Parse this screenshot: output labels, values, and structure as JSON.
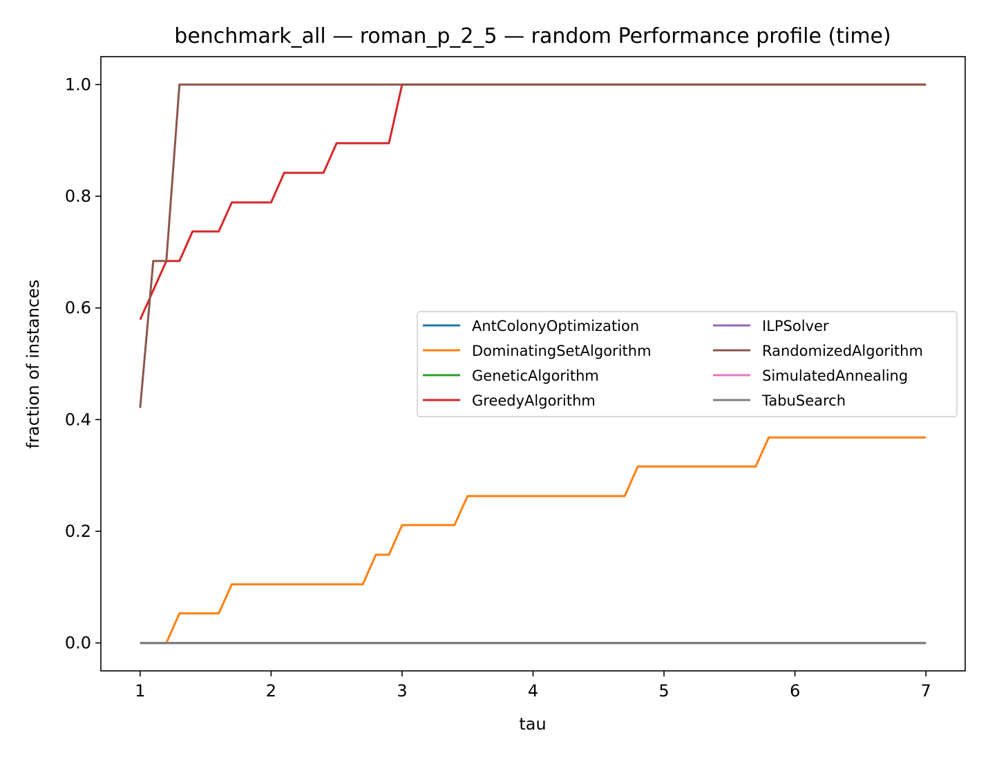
{
  "chart_data": {
    "type": "line",
    "title": "benchmark_all — roman_p_2_5 — random Performance profile (time)",
    "xlabel": "tau",
    "ylabel": "fraction of instances",
    "xlim": [
      0.7,
      7.3
    ],
    "ylim": [
      -0.05,
      1.05
    ],
    "xticks": [
      1,
      2,
      3,
      4,
      5,
      6,
      7
    ],
    "xtick_labels": [
      "1",
      "2",
      "3",
      "4",
      "5",
      "6",
      "7"
    ],
    "yticks": [
      0.0,
      0.2,
      0.4,
      0.6,
      0.8,
      1.0
    ],
    "ytick_labels": [
      "0.0",
      "0.2",
      "0.4",
      "0.6",
      "0.8",
      "1.0"
    ],
    "grid": false,
    "legend": {
      "placement": "center-right",
      "columns": 2
    },
    "series": [
      {
        "name": "AntColonyOptimization",
        "color": "#1f77b4",
        "x": [
          1.0,
          7.0
        ],
        "y": [
          0.0,
          0.0
        ]
      },
      {
        "name": "DominatingSetAlgorithm",
        "color": "#ff7f0e",
        "x": [
          1.0,
          1.2,
          1.3,
          1.6,
          1.7,
          2.7,
          2.8,
          2.9,
          3.0,
          3.4,
          3.5,
          4.7,
          4.8,
          5.7,
          5.8,
          7.0
        ],
        "y": [
          0.0,
          0.0,
          0.053,
          0.053,
          0.105,
          0.105,
          0.158,
          0.158,
          0.211,
          0.211,
          0.263,
          0.263,
          0.316,
          0.316,
          0.368,
          0.368
        ]
      },
      {
        "name": "GeneticAlgorithm",
        "color": "#2ca02c",
        "x": [
          1.0,
          7.0
        ],
        "y": [
          0.0,
          0.0
        ]
      },
      {
        "name": "GreedyAlgorithm",
        "color": "#d62728",
        "x": [
          1.0,
          1.2,
          1.3,
          1.4,
          1.6,
          1.7,
          2.0,
          2.1,
          2.4,
          2.5,
          2.9,
          3.0,
          7.0
        ],
        "y": [
          0.579,
          0.684,
          0.684,
          0.737,
          0.737,
          0.789,
          0.789,
          0.842,
          0.842,
          0.895,
          0.895,
          1.0,
          1.0
        ]
      },
      {
        "name": "ILPSolver",
        "color": "#9467bd",
        "x": [
          1.0,
          7.0
        ],
        "y": [
          0.0,
          0.0
        ]
      },
      {
        "name": "RandomizedAlgorithm",
        "color": "#8c564b",
        "x": [
          1.0,
          1.1,
          1.2,
          1.3,
          7.0
        ],
        "y": [
          0.421,
          0.684,
          0.684,
          1.0,
          1.0
        ]
      },
      {
        "name": "SimulatedAnnealing",
        "color": "#e377c2",
        "x": [
          1.0,
          7.0
        ],
        "y": [
          0.0,
          0.0
        ]
      },
      {
        "name": "TabuSearch",
        "color": "#7f7f7f",
        "x": [
          1.0,
          7.0
        ],
        "y": [
          0.0,
          0.0
        ]
      }
    ]
  }
}
